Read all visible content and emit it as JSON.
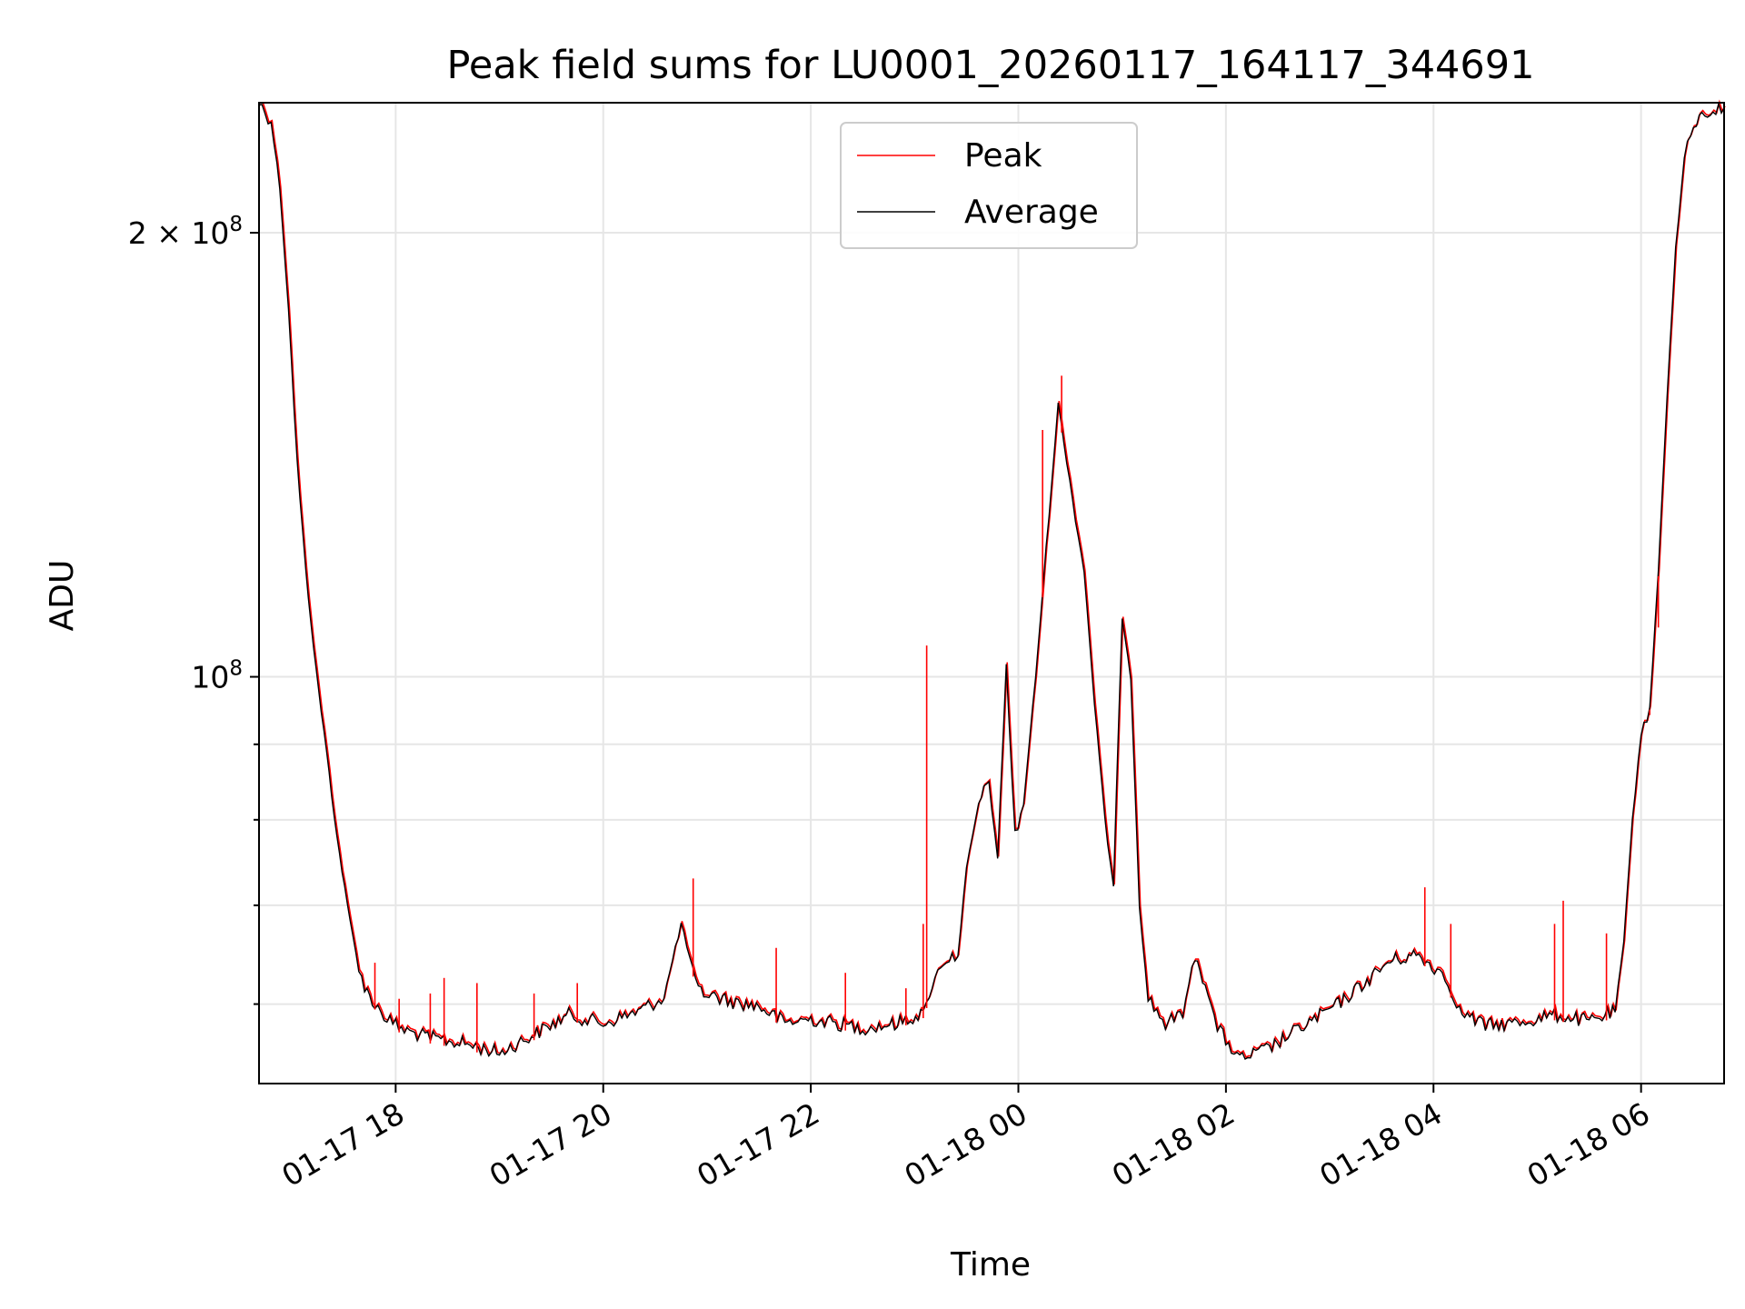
{
  "chart_data": {
    "type": "line",
    "title": "Peak field sums for LU0001_20260117_164117_344691",
    "xlabel": "Time",
    "ylabel": "ADU",
    "y_scale": "log",
    "xlim": [
      "2026-01-17 16:41",
      "2026-01-18 06:48"
    ],
    "ylim": [
      53000000,
      245000000
    ],
    "grid": true,
    "legend": "upper center",
    "x_ticks": [
      {
        "t": "2026-01-17 18:00",
        "label": "01-17 18"
      },
      {
        "t": "2026-01-17 20:00",
        "label": "01-17 20"
      },
      {
        "t": "2026-01-17 22:00",
        "label": "01-17 22"
      },
      {
        "t": "2026-01-18 00:00",
        "label": "01-18 00"
      },
      {
        "t": "2026-01-18 02:00",
        "label": "01-18 02"
      },
      {
        "t": "2026-01-18 04:00",
        "label": "01-18 04"
      },
      {
        "t": "2026-01-18 06:00",
        "label": "01-18 06"
      }
    ],
    "y_ticks": [
      {
        "v": 200000000,
        "base": "2 × 10",
        "exp": "8"
      },
      {
        "v": 100000000,
        "base": "10",
        "exp": "8"
      }
    ],
    "y_minor_ticks": [
      60000000,
      70000000,
      80000000,
      90000000
    ],
    "series": [
      {
        "name": "Average",
        "color": "#000000",
        "points": [
          [
            "2026-01-17 16:41",
            245000000
          ],
          [
            "2026-01-17 16:48",
            238000000
          ],
          [
            "2026-01-17 16:53",
            215000000
          ],
          [
            "2026-01-17 16:58",
            178000000
          ],
          [
            "2026-01-17 17:03",
            140000000
          ],
          [
            "2026-01-17 17:08",
            118000000
          ],
          [
            "2026-01-17 17:14",
            101000000
          ],
          [
            "2026-01-17 17:20",
            89000000
          ],
          [
            "2026-01-17 17:26",
            78000000
          ],
          [
            "2026-01-17 17:32",
            70000000
          ],
          [
            "2026-01-17 17:37",
            65000000
          ],
          [
            "2026-01-17 17:42",
            61500000
          ],
          [
            "2026-01-17 17:48",
            60000000
          ],
          [
            "2026-01-17 17:55",
            58600000
          ],
          [
            "2026-01-17 18:05",
            57600000
          ],
          [
            "2026-01-17 18:20",
            56900000
          ],
          [
            "2026-01-17 18:40",
            56400000
          ],
          [
            "2026-01-17 19:00",
            55600000
          ],
          [
            "2026-01-17 19:20",
            57200000
          ],
          [
            "2026-01-17 19:40",
            59000000
          ],
          [
            "2026-01-17 20:00",
            58200000
          ],
          [
            "2026-01-17 20:20",
            59300000
          ],
          [
            "2026-01-17 20:35",
            60600000
          ],
          [
            "2026-01-17 20:45",
            68000000
          ],
          [
            "2026-01-17 20:55",
            61200000
          ],
          [
            "2026-01-17 21:15",
            60200000
          ],
          [
            "2026-01-17 21:30",
            59800000
          ],
          [
            "2026-01-17 21:45",
            58300000
          ],
          [
            "2026-01-17 22:00",
            58600000
          ],
          [
            "2026-01-17 22:30",
            57800000
          ],
          [
            "2026-01-17 22:50",
            58200000
          ],
          [
            "2026-01-17 23:05",
            59200000
          ],
          [
            "2026-01-17 23:15",
            64000000
          ],
          [
            "2026-01-17 23:25",
            64800000
          ],
          [
            "2026-01-17 23:30",
            74000000
          ],
          [
            "2026-01-17 23:37",
            82000000
          ],
          [
            "2026-01-17 23:43",
            85000000
          ],
          [
            "2026-01-17 23:48",
            75000000
          ],
          [
            "2026-01-17 23:53",
            102000000
          ],
          [
            "2026-01-17 23:58",
            78000000
          ],
          [
            "2026-01-18 00:03",
            82000000
          ],
          [
            "2026-01-18 00:10",
            100000000
          ],
          [
            "2026-01-18 00:16",
            122000000
          ],
          [
            "2026-01-18 00:23",
            153000000
          ],
          [
            "2026-01-18 00:28",
            140000000
          ],
          [
            "2026-01-18 00:33",
            128000000
          ],
          [
            "2026-01-18 00:38",
            118000000
          ],
          [
            "2026-01-18 00:44",
            96000000
          ],
          [
            "2026-01-18 00:50",
            80000000
          ],
          [
            "2026-01-18 00:55",
            72000000
          ],
          [
            "2026-01-18 01:00",
            110000000
          ],
          [
            "2026-01-18 01:05",
            100000000
          ],
          [
            "2026-01-18 01:10",
            70000000
          ],
          [
            "2026-01-18 01:15",
            60500000
          ],
          [
            "2026-01-18 01:25",
            58200000
          ],
          [
            "2026-01-18 01:35",
            59000000
          ],
          [
            "2026-01-18 01:42",
            64800000
          ],
          [
            "2026-01-18 01:48",
            62000000
          ],
          [
            "2026-01-18 01:55",
            57800000
          ],
          [
            "2026-01-18 02:08",
            55000000
          ],
          [
            "2026-01-18 02:25",
            56000000
          ],
          [
            "2026-01-18 02:45",
            58000000
          ],
          [
            "2026-01-18 03:05",
            60000000
          ],
          [
            "2026-01-18 03:20",
            62000000
          ],
          [
            "2026-01-18 03:35",
            64200000
          ],
          [
            "2026-01-18 03:50",
            64800000
          ],
          [
            "2026-01-18 04:05",
            63000000
          ],
          [
            "2026-01-18 04:15",
            59300000
          ],
          [
            "2026-01-18 04:30",
            58000000
          ],
          [
            "2026-01-18 04:50",
            58300000
          ],
          [
            "2026-01-18 05:10",
            59000000
          ],
          [
            "2026-01-18 05:30",
            58400000
          ],
          [
            "2026-01-18 05:45",
            59300000
          ],
          [
            "2026-01-18 05:50",
            66000000
          ],
          [
            "2026-01-18 05:55",
            80000000
          ],
          [
            "2026-01-18 06:00",
            92000000
          ],
          [
            "2026-01-18 06:05",
            95000000
          ],
          [
            "2026-01-18 06:10",
            118000000
          ],
          [
            "2026-01-18 06:15",
            155000000
          ],
          [
            "2026-01-18 06:20",
            195000000
          ],
          [
            "2026-01-18 06:25",
            225000000
          ],
          [
            "2026-01-18 06:32",
            238000000
          ],
          [
            "2026-01-18 06:40",
            242000000
          ],
          [
            "2026-01-18 06:48",
            243000000
          ]
        ]
      },
      {
        "name": "Peak",
        "color": "#ff0000",
        "points": [
          [
            "2026-01-17 17:48",
            64000000
          ],
          [
            "2026-01-17 18:02",
            60500000
          ],
          [
            "2026-01-17 18:20",
            61000000
          ],
          [
            "2026-01-17 18:28",
            62500000
          ],
          [
            "2026-01-17 18:47",
            62000000
          ],
          [
            "2026-01-17 19:20",
            61000000
          ],
          [
            "2026-01-17 19:45",
            62000000
          ],
          [
            "2026-01-17 20:52",
            73000000
          ],
          [
            "2026-01-17 21:40",
            65500000
          ],
          [
            "2026-01-17 22:20",
            63000000
          ],
          [
            "2026-01-17 22:55",
            61500000
          ],
          [
            "2026-01-17 23:05",
            68000000
          ],
          [
            "2026-01-17 23:07",
            105000000
          ],
          [
            "2026-01-18 00:14",
            147000000
          ],
          [
            "2026-01-18 00:25",
            160000000
          ],
          [
            "2026-01-18 06:05",
            95000000
          ],
          [
            "2026-01-18 06:10",
            108000000
          ],
          [
            "2026-01-18 03:55",
            72000000
          ],
          [
            "2026-01-18 04:10",
            68000000
          ],
          [
            "2026-01-18 05:10",
            68000000
          ],
          [
            "2026-01-18 05:15",
            70500000
          ],
          [
            "2026-01-18 05:40",
            67000000
          ]
        ]
      }
    ]
  }
}
